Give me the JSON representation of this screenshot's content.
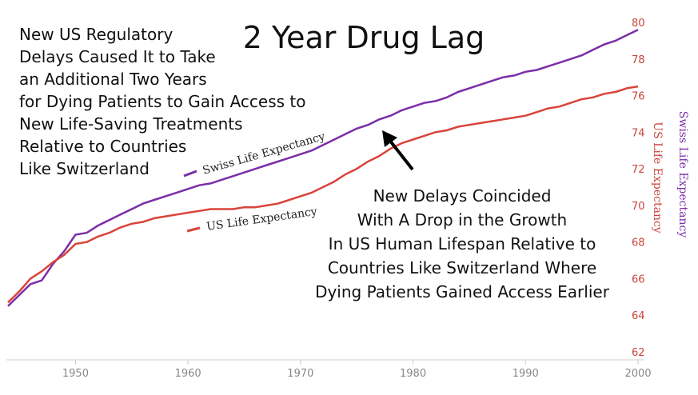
{
  "chart_data": {
    "type": "line",
    "title": "2 Year Drug Lag",
    "xlim": [
      1944,
      2000
    ],
    "ylim": [
      62,
      80
    ],
    "x_ticks": [
      1950,
      1960,
      1970,
      1980,
      1990,
      2000
    ],
    "y_ticks": [
      62,
      64,
      66,
      68,
      70,
      72,
      74,
      76,
      78,
      80
    ],
    "y_axis_labels": [
      "US Life Expectancy",
      "Swiss Life Expectancy"
    ],
    "grid": false,
    "series": [
      {
        "name": "Swiss Life Expectancy",
        "color": "#7a2ea8",
        "points": [
          [
            1944,
            64.5
          ],
          [
            1945,
            65.1
          ],
          [
            1946,
            65.7
          ],
          [
            1947,
            65.9
          ],
          [
            1948,
            66.8
          ],
          [
            1949,
            67.5
          ],
          [
            1950,
            68.4
          ],
          [
            1951,
            68.5
          ],
          [
            1952,
            68.9
          ],
          [
            1953,
            69.2
          ],
          [
            1954,
            69.5
          ],
          [
            1955,
            69.8
          ],
          [
            1956,
            70.1
          ],
          [
            1957,
            70.3
          ],
          [
            1958,
            70.5
          ],
          [
            1959,
            70.7
          ],
          [
            1960,
            70.9
          ],
          [
            1961,
            71.1
          ],
          [
            1962,
            71.2
          ],
          [
            1963,
            71.4
          ],
          [
            1964,
            71.6
          ],
          [
            1965,
            71.8
          ],
          [
            1966,
            72.0
          ],
          [
            1967,
            72.2
          ],
          [
            1968,
            72.4
          ],
          [
            1969,
            72.6
          ],
          [
            1970,
            72.8
          ],
          [
            1971,
            73.0
          ],
          [
            1972,
            73.3
          ],
          [
            1973,
            73.6
          ],
          [
            1974,
            73.9
          ],
          [
            1975,
            74.2
          ],
          [
            1976,
            74.4
          ],
          [
            1977,
            74.7
          ],
          [
            1978,
            74.9
          ],
          [
            1979,
            75.2
          ],
          [
            1980,
            75.4
          ],
          [
            1981,
            75.6
          ],
          [
            1982,
            75.7
          ],
          [
            1983,
            75.9
          ],
          [
            1984,
            76.2
          ],
          [
            1985,
            76.4
          ],
          [
            1986,
            76.6
          ],
          [
            1987,
            76.8
          ],
          [
            1988,
            77.0
          ],
          [
            1989,
            77.1
          ],
          [
            1990,
            77.3
          ],
          [
            1991,
            77.4
          ],
          [
            1992,
            77.6
          ],
          [
            1993,
            77.8
          ],
          [
            1994,
            78.0
          ],
          [
            1995,
            78.2
          ],
          [
            1996,
            78.5
          ],
          [
            1997,
            78.8
          ],
          [
            1998,
            79.0
          ],
          [
            1999,
            79.3
          ],
          [
            2000,
            79.6
          ]
        ]
      },
      {
        "name": "US Life Expectancy",
        "color": "#d9443a",
        "points": [
          [
            1944,
            64.7
          ],
          [
            1945,
            65.3
          ],
          [
            1946,
            66.0
          ],
          [
            1947,
            66.4
          ],
          [
            1948,
            66.9
          ],
          [
            1949,
            67.3
          ],
          [
            1950,
            67.9
          ],
          [
            1951,
            68.0
          ],
          [
            1952,
            68.3
          ],
          [
            1953,
            68.5
          ],
          [
            1954,
            68.8
          ],
          [
            1955,
            69.0
          ],
          [
            1956,
            69.1
          ],
          [
            1957,
            69.3
          ],
          [
            1958,
            69.4
          ],
          [
            1959,
            69.5
          ],
          [
            1960,
            69.6
          ],
          [
            1961,
            69.7
          ],
          [
            1962,
            69.8
          ],
          [
            1963,
            69.8
          ],
          [
            1964,
            69.8
          ],
          [
            1965,
            69.9
          ],
          [
            1966,
            69.9
          ],
          [
            1967,
            70.0
          ],
          [
            1968,
            70.1
          ],
          [
            1969,
            70.3
          ],
          [
            1970,
            70.5
          ],
          [
            1971,
            70.7
          ],
          [
            1972,
            71.0
          ],
          [
            1973,
            71.3
          ],
          [
            1974,
            71.7
          ],
          [
            1975,
            72.0
          ],
          [
            1976,
            72.4
          ],
          [
            1977,
            72.7
          ],
          [
            1978,
            73.1
          ],
          [
            1979,
            73.4
          ],
          [
            1980,
            73.6
          ],
          [
            1981,
            73.8
          ],
          [
            1982,
            74.0
          ],
          [
            1983,
            74.1
          ],
          [
            1984,
            74.3
          ],
          [
            1985,
            74.4
          ],
          [
            1986,
            74.5
          ],
          [
            1987,
            74.6
          ],
          [
            1988,
            74.7
          ],
          [
            1989,
            74.8
          ],
          [
            1990,
            74.9
          ],
          [
            1991,
            75.1
          ],
          [
            1992,
            75.3
          ],
          [
            1993,
            75.4
          ],
          [
            1994,
            75.6
          ],
          [
            1995,
            75.8
          ],
          [
            1996,
            75.9
          ],
          [
            1997,
            76.1
          ],
          [
            1998,
            76.2
          ],
          [
            1999,
            76.4
          ],
          [
            2000,
            76.5
          ]
        ]
      }
    ],
    "annotations": {
      "left_note": [
        "New US Regulatory",
        "Delays Caused It to Take",
        "an Additional Two Years",
        "for Dying Patients to Gain Access to",
        "New Life-Saving Treatments",
        "Relative to Countries",
        "Like Switzerland"
      ],
      "right_note": [
        "New Delays Coincided",
        "With A Drop in the Growth",
        "In US Human Lifespan Relative to",
        "Countries Like Switzerland Where",
        "Dying Patients Gained Access Earlier"
      ]
    }
  }
}
